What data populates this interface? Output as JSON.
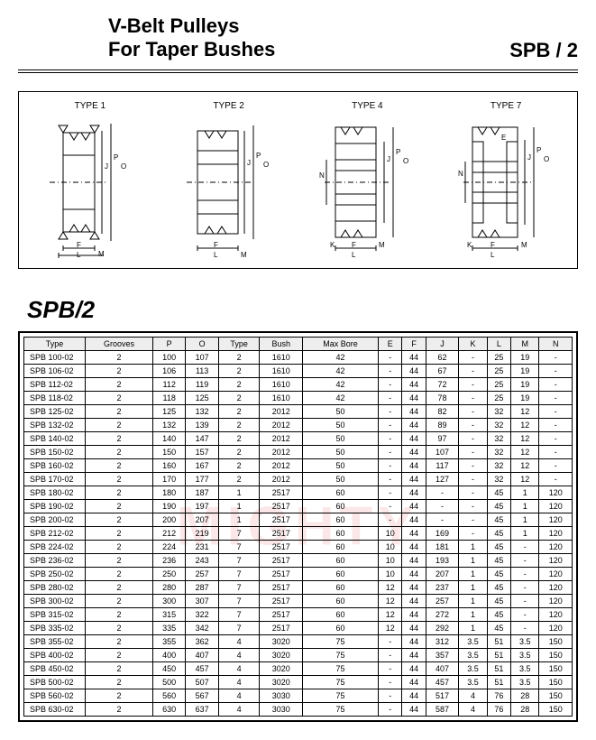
{
  "header": {
    "title_line1": "V-Belt Pulleys",
    "title_line2": "For Taper Bushes",
    "right": "SPB / 2"
  },
  "diagrams": {
    "types": [
      "TYPE 1",
      "TYPE 2",
      "TYPE 4",
      "TYPE 7"
    ],
    "dim_labels": [
      "E",
      "J",
      "P",
      "O",
      "F",
      "L",
      "M",
      "K",
      "N"
    ],
    "stroke_color": "#000000",
    "fill_color": "#ffffff"
  },
  "section": {
    "title": "SPB/2"
  },
  "table": {
    "columns": [
      "Type",
      "Grooves",
      "P",
      "O",
      "Type",
      "Bush",
      "Max Bore",
      "E",
      "F",
      "J",
      "K",
      "L",
      "M",
      "N"
    ],
    "rows": [
      [
        "SPB 100-02",
        "2",
        "100",
        "107",
        "2",
        "1610",
        "42",
        "-",
        "44",
        "62",
        "-",
        "25",
        "19",
        "-"
      ],
      [
        "SPB 106-02",
        "2",
        "106",
        "113",
        "2",
        "1610",
        "42",
        "-",
        "44",
        "67",
        "-",
        "25",
        "19",
        "-"
      ],
      [
        "SPB 112-02",
        "2",
        "112",
        "119",
        "2",
        "1610",
        "42",
        "-",
        "44",
        "72",
        "-",
        "25",
        "19",
        "-"
      ],
      [
        "SPB 118-02",
        "2",
        "118",
        "125",
        "2",
        "1610",
        "42",
        "-",
        "44",
        "78",
        "-",
        "25",
        "19",
        "-"
      ],
      [
        "SPB 125-02",
        "2",
        "125",
        "132",
        "2",
        "2012",
        "50",
        "-",
        "44",
        "82",
        "-",
        "32",
        "12",
        "-"
      ],
      [
        "SPB 132-02",
        "2",
        "132",
        "139",
        "2",
        "2012",
        "50",
        "-",
        "44",
        "89",
        "-",
        "32",
        "12",
        "-"
      ],
      [
        "SPB 140-02",
        "2",
        "140",
        "147",
        "2",
        "2012",
        "50",
        "-",
        "44",
        "97",
        "-",
        "32",
        "12",
        "-"
      ],
      [
        "SPB 150-02",
        "2",
        "150",
        "157",
        "2",
        "2012",
        "50",
        "-",
        "44",
        "107",
        "-",
        "32",
        "12",
        "-"
      ],
      [
        "SPB 160-02",
        "2",
        "160",
        "167",
        "2",
        "2012",
        "50",
        "-",
        "44",
        "117",
        "-",
        "32",
        "12",
        "-"
      ],
      [
        "SPB 170-02",
        "2",
        "170",
        "177",
        "2",
        "2012",
        "50",
        "-",
        "44",
        "127",
        "-",
        "32",
        "12",
        "-"
      ],
      [
        "SPB 180-02",
        "2",
        "180",
        "187",
        "1",
        "2517",
        "60",
        "-",
        "44",
        "-",
        "-",
        "45",
        "1",
        "120"
      ],
      [
        "SPB 190-02",
        "2",
        "190",
        "197",
        "1",
        "2517",
        "60",
        "-",
        "44",
        "-",
        "-",
        "45",
        "1",
        "120"
      ],
      [
        "SPB 200-02",
        "2",
        "200",
        "207",
        "1",
        "2517",
        "60",
        "-",
        "44",
        "-",
        "-",
        "45",
        "1",
        "120"
      ],
      [
        "SPB 212-02",
        "2",
        "212",
        "219",
        "7",
        "2517",
        "60",
        "10",
        "44",
        "169",
        "-",
        "45",
        "1",
        "120"
      ],
      [
        "SPB 224-02",
        "2",
        "224",
        "231",
        "7",
        "2517",
        "60",
        "10",
        "44",
        "181",
        "1",
        "45",
        "-",
        "120"
      ],
      [
        "SPB 236-02",
        "2",
        "236",
        "243",
        "7",
        "2517",
        "60",
        "10",
        "44",
        "193",
        "1",
        "45",
        "-",
        "120"
      ],
      [
        "SPB 250-02",
        "2",
        "250",
        "257",
        "7",
        "2517",
        "60",
        "10",
        "44",
        "207",
        "1",
        "45",
        "-",
        "120"
      ],
      [
        "SPB 280-02",
        "2",
        "280",
        "287",
        "7",
        "2517",
        "60",
        "12",
        "44",
        "237",
        "1",
        "45",
        "-",
        "120"
      ],
      [
        "SPB 300-02",
        "2",
        "300",
        "307",
        "7",
        "2517",
        "60",
        "12",
        "44",
        "257",
        "1",
        "45",
        "-",
        "120"
      ],
      [
        "SPB 315-02",
        "2",
        "315",
        "322",
        "7",
        "2517",
        "60",
        "12",
        "44",
        "272",
        "1",
        "45",
        "-",
        "120"
      ],
      [
        "SPB 335-02",
        "2",
        "335",
        "342",
        "7",
        "2517",
        "60",
        "12",
        "44",
        "292",
        "1",
        "45",
        "-",
        "120"
      ],
      [
        "SPB 355-02",
        "2",
        "355",
        "362",
        "4",
        "3020",
        "75",
        "-",
        "44",
        "312",
        "3.5",
        "51",
        "3.5",
        "150"
      ],
      [
        "SPB 400-02",
        "2",
        "400",
        "407",
        "4",
        "3020",
        "75",
        "-",
        "44",
        "357",
        "3.5",
        "51",
        "3.5",
        "150"
      ],
      [
        "SPB 450-02",
        "2",
        "450",
        "457",
        "4",
        "3020",
        "75",
        "-",
        "44",
        "407",
        "3.5",
        "51",
        "3.5",
        "150"
      ],
      [
        "SPB 500-02",
        "2",
        "500",
        "507",
        "4",
        "3020",
        "75",
        "-",
        "44",
        "457",
        "3.5",
        "51",
        "3.5",
        "150"
      ],
      [
        "SPB 560-02",
        "2",
        "560",
        "567",
        "4",
        "3030",
        "75",
        "-",
        "44",
        "517",
        "4",
        "76",
        "28",
        "150"
      ],
      [
        "SPB 630-02",
        "2",
        "630",
        "637",
        "4",
        "3030",
        "75",
        "-",
        "44",
        "587",
        "4",
        "76",
        "28",
        "150"
      ]
    ],
    "border_color": "#000000",
    "header_bg": "#eeeeee",
    "font_size": 9
  },
  "watermark": {
    "text": "MIGHTY",
    "color": "rgba(220,60,60,0.12)"
  }
}
